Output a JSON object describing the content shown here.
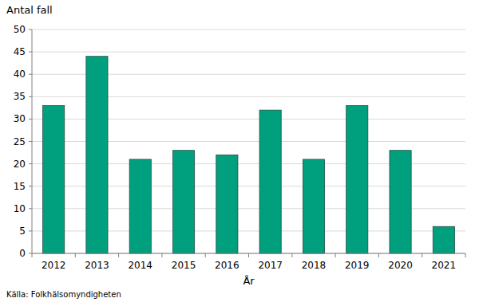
{
  "chart_data": {
    "type": "bar",
    "ylabel": "Antal fall",
    "xlabel": "År",
    "source": "Källa: Folkhälsomyndigheten",
    "categories": [
      "2012",
      "2013",
      "2014",
      "2015",
      "2016",
      "2017",
      "2018",
      "2019",
      "2020",
      "2021"
    ],
    "values": [
      33,
      44,
      21,
      23,
      22,
      32,
      21,
      33,
      23,
      6
    ],
    "color": "#00a07f",
    "ylim": [
      0,
      50
    ],
    "yticks": [
      0,
      5,
      10,
      15,
      20,
      25,
      30,
      35,
      40,
      45,
      50
    ],
    "grid": true
  }
}
